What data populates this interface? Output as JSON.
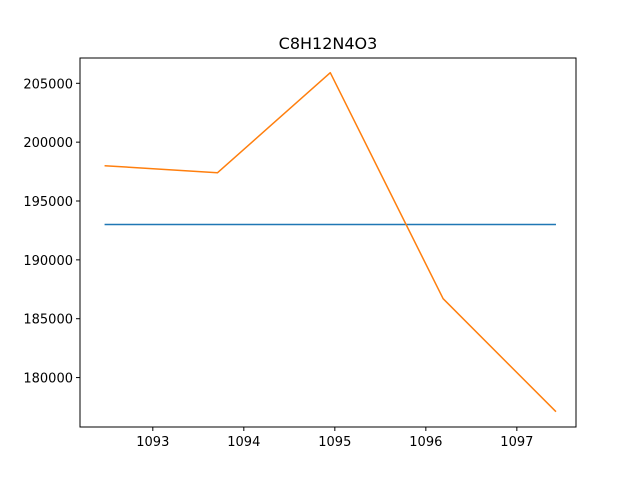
{
  "chart_data": {
    "type": "line",
    "title": "C8H12N4O3",
    "xlabel": "",
    "ylabel": "",
    "xlim": [
      1092.2,
      1097.65
    ],
    "ylim": [
      175800,
      207150
    ],
    "x_ticks": [
      "1093",
      "1094",
      "1095",
      "1096",
      "1097"
    ],
    "x_tick_values": [
      1093,
      1094,
      1095,
      1096,
      1097
    ],
    "y_ticks": [
      "180000",
      "185000",
      "190000",
      "195000",
      "200000",
      "205000"
    ],
    "y_tick_values": [
      180000,
      185000,
      190000,
      195000,
      200000,
      205000
    ],
    "grid": false,
    "legend": "none",
    "series": [
      {
        "color": "#1f77b4",
        "x": [
          1092.47,
          1097.43
        ],
        "y": [
          193000,
          193000
        ]
      },
      {
        "color": "#ff7f0e",
        "x": [
          1092.47,
          1093.71,
          1094.95,
          1096.19,
          1097.43
        ],
        "y": [
          198000,
          197400,
          205900,
          186700,
          177100
        ]
      }
    ]
  }
}
